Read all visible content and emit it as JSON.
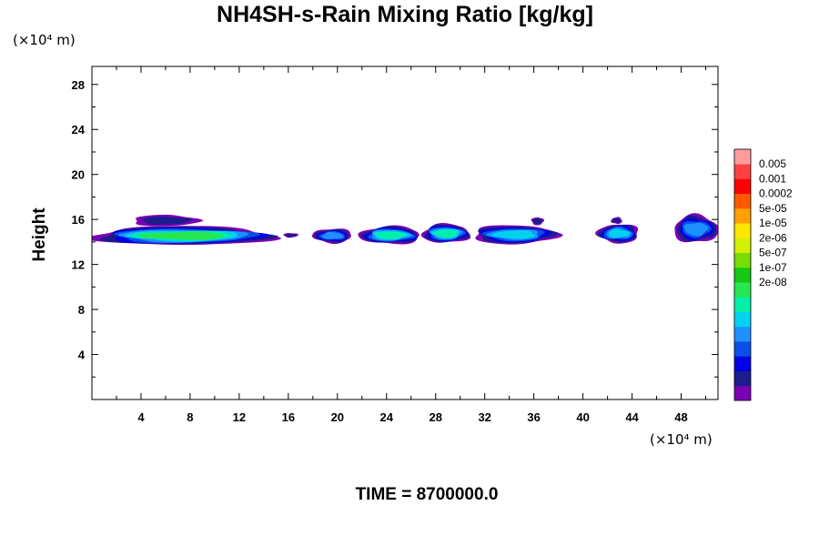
{
  "chart_data": {
    "type": "heatmap",
    "title": "NH4SH-s-Rain Mixing Ratio [kg/kg]",
    "ylabel": "Height",
    "x_unit_label": "(×10⁴ m)",
    "y_unit_label": "(×10⁴ m)",
    "xlim": [
      0,
      51
    ],
    "ylim": [
      0,
      29.6
    ],
    "x_ticks": [
      4,
      8,
      12,
      16,
      20,
      24,
      28,
      32,
      36,
      40,
      44,
      48
    ],
    "y_ticks": [
      4,
      8,
      12,
      16,
      20,
      24,
      28
    ],
    "time_label": "TIME = 8700000.0",
    "colorbar": {
      "labels": [
        "0.005",
        "0.001",
        "0.0002",
        "5e-05",
        "1e-05",
        "2e-06",
        "5e-07",
        "1e-07",
        "2e-08"
      ],
      "colors": [
        "#7a00b4",
        "#1c1c8c",
        "#0000e6",
        "#0a50e6",
        "#1e90ff",
        "#00d2f0",
        "#00f0aa",
        "#28e650",
        "#14c814",
        "#78dc00",
        "#d2f000",
        "#ffe600",
        "#ffa000",
        "#ff5a00",
        "#ff0000",
        "#ff4040",
        "#ff9c9c"
      ]
    },
    "clouds": [
      {
        "x0": 0.0,
        "x1": 14.9,
        "y0": 13.7,
        "y1": 15.4,
        "peak": 0.82
      },
      {
        "x0": 3.3,
        "x1": 8.7,
        "y0": 15.4,
        "y1": 16.4,
        "peak": 0.05
      },
      {
        "x0": 15.6,
        "x1": 16.8,
        "y0": 14.4,
        "y1": 14.8,
        "peak": 0.18
      },
      {
        "x0": 18.0,
        "x1": 21.2,
        "y0": 13.9,
        "y1": 15.2,
        "peak": 0.45
      },
      {
        "x0": 21.8,
        "x1": 26.8,
        "y0": 13.8,
        "y1": 15.4,
        "peak": 0.65
      },
      {
        "x0": 26.9,
        "x1": 30.8,
        "y0": 13.9,
        "y1": 15.6,
        "peak": 0.7
      },
      {
        "x0": 31.0,
        "x1": 37.9,
        "y0": 13.8,
        "y1": 15.5,
        "peak": 0.62
      },
      {
        "x0": 35.8,
        "x1": 36.8,
        "y0": 15.5,
        "y1": 16.2,
        "peak": 0.05
      },
      {
        "x0": 41.2,
        "x1": 44.6,
        "y0": 13.9,
        "y1": 15.6,
        "peak": 0.55
      },
      {
        "x0": 42.3,
        "x1": 43.2,
        "y0": 15.6,
        "y1": 16.2,
        "peak": 0.05
      },
      {
        "x0": 47.4,
        "x1": 51.0,
        "y0": 13.9,
        "y1": 16.4,
        "peak": 0.5
      }
    ]
  }
}
